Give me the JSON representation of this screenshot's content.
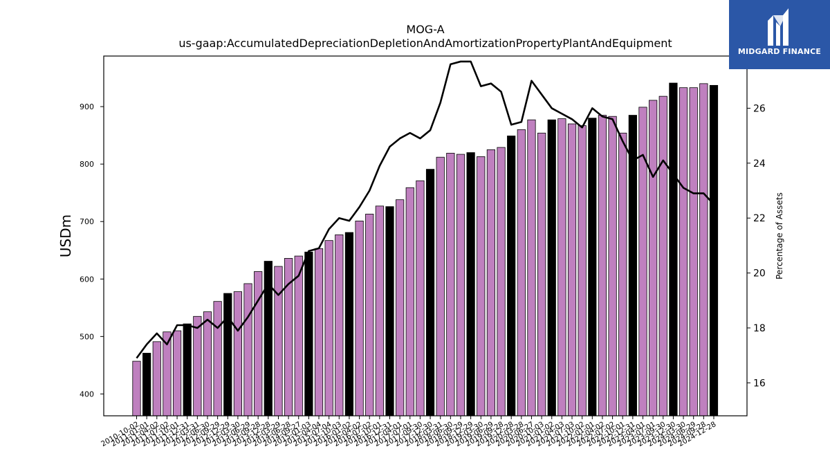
{
  "chart_data": {
    "type": "bar",
    "title": "MOG-A",
    "subtitle": "us-gaap:AccumulatedDepreciationDepletionAndAmortizationPropertyPlantAndEquipment",
    "ylabel": "USDm",
    "y2label": "Percentage of Assets",
    "ylim": [
      362,
      988
    ],
    "y2lim": [
      14.8,
      27.9
    ],
    "yticks": [
      400,
      500,
      600,
      700,
      800,
      900
    ],
    "y2ticks": [
      16,
      18,
      20,
      22,
      24,
      26
    ],
    "grid": false,
    "categories": [
      "2010-10-02",
      "2011-01-01",
      "2011-04-02",
      "2011-07-02",
      "2011-10-01",
      "2011-12-31",
      "2012-03-31",
      "2012-06-30",
      "2012-09-29",
      "2012-12-29",
      "2013-03-30",
      "2013-06-29",
      "2013-09-28",
      "2013-12-28",
      "2014-03-29",
      "2014-06-28",
      "2014-09-27",
      "2015-01-03",
      "2015-04-04",
      "2015-07-04",
      "2015-10-03",
      "2016-01-02",
      "2016-04-02",
      "2016-07-02",
      "2016-10-01",
      "2016-12-31",
      "2017-04-01",
      "2017-07-01",
      "2017-09-30",
      "2017-12-30",
      "2018-03-31",
      "2018-06-30",
      "2018-09-29",
      "2018-12-29",
      "2019-03-30",
      "2019-06-29",
      "2019-09-28",
      "2019-12-28",
      "2020-03-28",
      "2020-06-27",
      "2020-10-03",
      "2021-01-02",
      "2021-04-03",
      "2021-07-03",
      "2021-10-02",
      "2022-01-01",
      "2022-04-02",
      "2022-07-02",
      "2022-10-01",
      "2022-12-31",
      "2023-04-01",
      "2023-07-01",
      "2023-09-30",
      "2023-12-30",
      "2024-03-30",
      "2024-06-29",
      "2024-09-28",
      "2024-12-28"
    ],
    "series": [
      {
        "values": [
          457,
          471,
          491,
          508,
          510,
          522,
          535,
          543,
          561,
          575,
          578,
          592,
          613,
          631,
          622,
          636,
          640,
          647,
          653,
          667,
          677,
          681,
          701,
          713,
          727,
          726,
          738,
          759,
          771,
          791,
          812,
          819,
          817,
          820,
          813,
          825,
          829,
          849,
          860,
          877,
          854,
          877,
          879,
          870,
          867,
          880,
          885,
          883,
          854,
          885,
          899,
          911,
          918,
          941,
          933,
          933,
          940,
          937
        ]
      },
      {
        "values": [
          16.9,
          17.4,
          17.8,
          17.4,
          18.1,
          18.1,
          18.0,
          18.3,
          18.0,
          18.4,
          17.9,
          18.4,
          19.0,
          19.6,
          19.2,
          19.6,
          19.9,
          20.8,
          20.9,
          21.6,
          22.0,
          21.9,
          22.4,
          23.0,
          23.9,
          24.6,
          24.9,
          25.1,
          24.9,
          25.2,
          26.2,
          27.6,
          27.7,
          27.7,
          26.8,
          26.9,
          26.6,
          25.4,
          25.5,
          27.0,
          26.5,
          26.0,
          25.8,
          25.6,
          25.3,
          26.0,
          25.7,
          25.6,
          24.8,
          24.1,
          24.3,
          23.5,
          24.1,
          23.6,
          23.1,
          22.9,
          22.9,
          22.5
        ]
      }
    ],
    "highlight_indices": [
      1,
      5,
      9,
      13,
      17,
      21,
      25,
      29,
      33,
      37,
      41,
      45,
      49,
      53,
      57
    ],
    "colors": {
      "bar": "#bf80bf",
      "bar_highlight": "#000000",
      "line": "#000000"
    }
  },
  "logo": {
    "name": "midgard-logo",
    "text": "MIDGARD FINANCE",
    "background": "#2b57a7"
  }
}
